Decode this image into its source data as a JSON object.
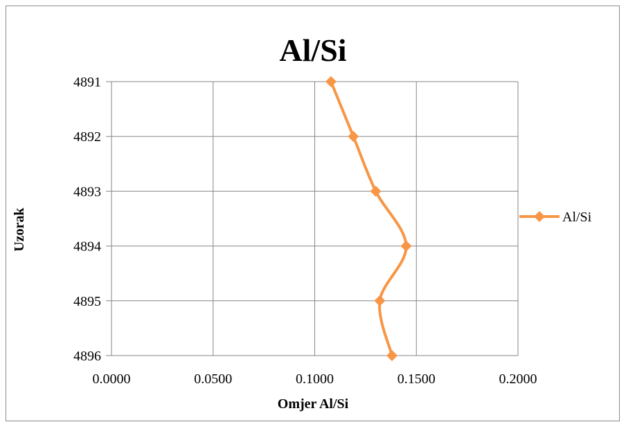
{
  "chart_data": {
    "type": "line",
    "title": "Al/Si",
    "xlabel": "Omjer Al/Si",
    "ylabel": "Uzorak",
    "xlim": [
      0.0,
      0.2
    ],
    "x_ticks": [
      "0.0000",
      "0.0500",
      "0.1000",
      "0.1500",
      "0.2000"
    ],
    "y_ticks": [
      "4891",
      "4892",
      "4893",
      "4894",
      "4895",
      "4896"
    ],
    "y_axis_reversed": true,
    "grid": true,
    "legend_position": "right",
    "series": [
      {
        "name": "Al/Si",
        "color": "#f79646",
        "marker": "diamond",
        "smooth": true,
        "points": [
          {
            "x": 0.108,
            "y": 4891
          },
          {
            "x": 0.119,
            "y": 4892
          },
          {
            "x": 0.13,
            "y": 4893
          },
          {
            "x": 0.145,
            "y": 4894
          },
          {
            "x": 0.132,
            "y": 4895
          },
          {
            "x": 0.138,
            "y": 4896
          }
        ]
      }
    ]
  }
}
